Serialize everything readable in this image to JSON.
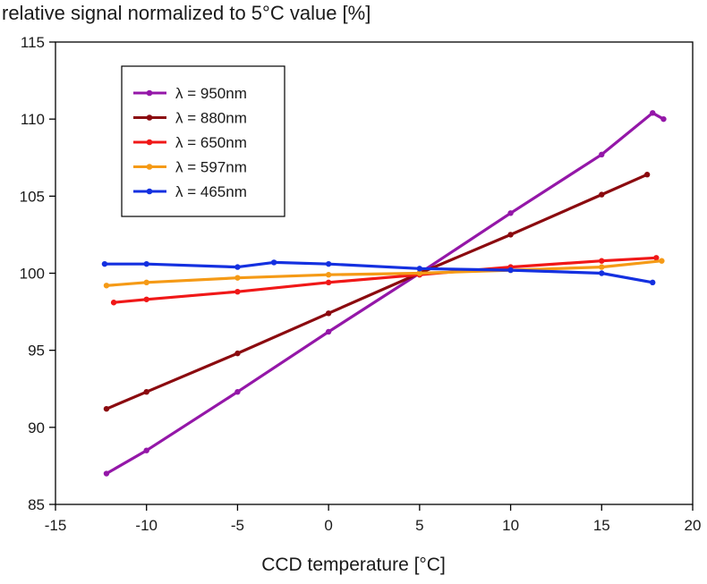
{
  "chart_data": {
    "type": "line",
    "ylabel": "relative signal normalized to 5°C value [%]",
    "xlabel": "CCD temperature [°C]",
    "xlim": [
      -15,
      20
    ],
    "ylim": [
      85,
      115
    ],
    "xticks": [
      "-15",
      "-10",
      "-5",
      "0",
      "5",
      "10",
      "15",
      "20"
    ],
    "yticks": [
      "85",
      "90",
      "95",
      "100",
      "105",
      "110",
      "115"
    ],
    "grid": false,
    "legend_position": "top-left",
    "legend_symbol": "λ",
    "series": [
      {
        "name": "λ = 950nm",
        "color": "#9417a8",
        "x": [
          -12.2,
          -10,
          -5,
          0,
          5,
          10,
          15,
          17.8,
          18.4
        ],
        "y": [
          87.0,
          88.5,
          92.3,
          96.2,
          100.0,
          103.9,
          107.7,
          110.4,
          110.0
        ]
      },
      {
        "name": "λ = 880nm",
        "color": "#8b0a0f",
        "x": [
          -12.2,
          -10,
          -5,
          0,
          5,
          10,
          15,
          17.5
        ],
        "y": [
          91.2,
          92.3,
          94.8,
          97.4,
          100.0,
          102.5,
          105.1,
          106.4
        ]
      },
      {
        "name": "λ = 650nm",
        "color": "#f01818",
        "x": [
          -11.8,
          -10,
          -5,
          0,
          5,
          10,
          15,
          18
        ],
        "y": [
          98.1,
          98.3,
          98.8,
          99.4,
          99.9,
          100.4,
          100.8,
          101.0
        ]
      },
      {
        "name": "λ = 597nm",
        "color": "#f59a16",
        "x": [
          -12.2,
          -10,
          -5,
          0,
          5,
          10,
          15,
          18.3
        ],
        "y": [
          99.2,
          99.4,
          99.7,
          99.9,
          100.0,
          100.2,
          100.4,
          100.8
        ]
      },
      {
        "name": "λ = 465nm",
        "color": "#1430e0",
        "x": [
          -12.3,
          -10,
          -5,
          -3,
          0,
          5,
          10,
          15,
          17.8
        ],
        "y": [
          100.6,
          100.6,
          100.4,
          100.7,
          100.6,
          100.3,
          100.2,
          100.0,
          99.4
        ]
      }
    ]
  }
}
